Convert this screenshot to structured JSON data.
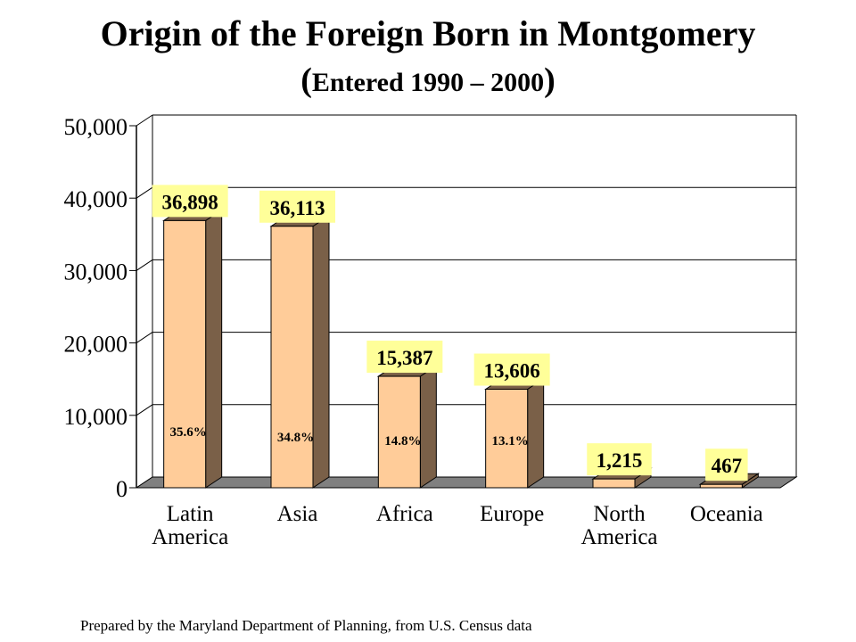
{
  "title": "Origin of the Foreign Born in Montgomery",
  "subtitle": {
    "open": "(",
    "text": "Entered 1990 – 2000",
    "close": ")"
  },
  "footer": "Prepared by the Maryland Department of Planning, from U.S. Census data",
  "chart_data": {
    "type": "bar",
    "title": "Origin of the Foreign Born in Montgomery",
    "subtitle": "(Entered 1990 – 2000)",
    "categories": [
      [
        "Latin",
        "America"
      ],
      [
        "Asia"
      ],
      [
        "Africa"
      ],
      [
        "Europe"
      ],
      [
        "North",
        "America"
      ],
      [
        "Oceania"
      ]
    ],
    "values": [
      36898,
      36113,
      15387,
      13606,
      1215,
      467
    ],
    "value_labels": [
      "36,898",
      "36,113",
      "15,387",
      "13,606",
      "1,215",
      "467"
    ],
    "percent_labels": [
      "35.6%",
      "34.8%",
      "14.8%",
      "13.1%",
      "",
      ""
    ],
    "yticks": [
      "0",
      "10,000",
      "20,000",
      "30,000",
      "40,000",
      "50,000"
    ],
    "ylim": [
      0,
      50000
    ],
    "grid": true,
    "colors": {
      "bar_front": "#ffcc99",
      "bar_side": "#7a6048",
      "floor": "#808080",
      "label_bg": "#ffff99",
      "grid": "#000000"
    }
  }
}
